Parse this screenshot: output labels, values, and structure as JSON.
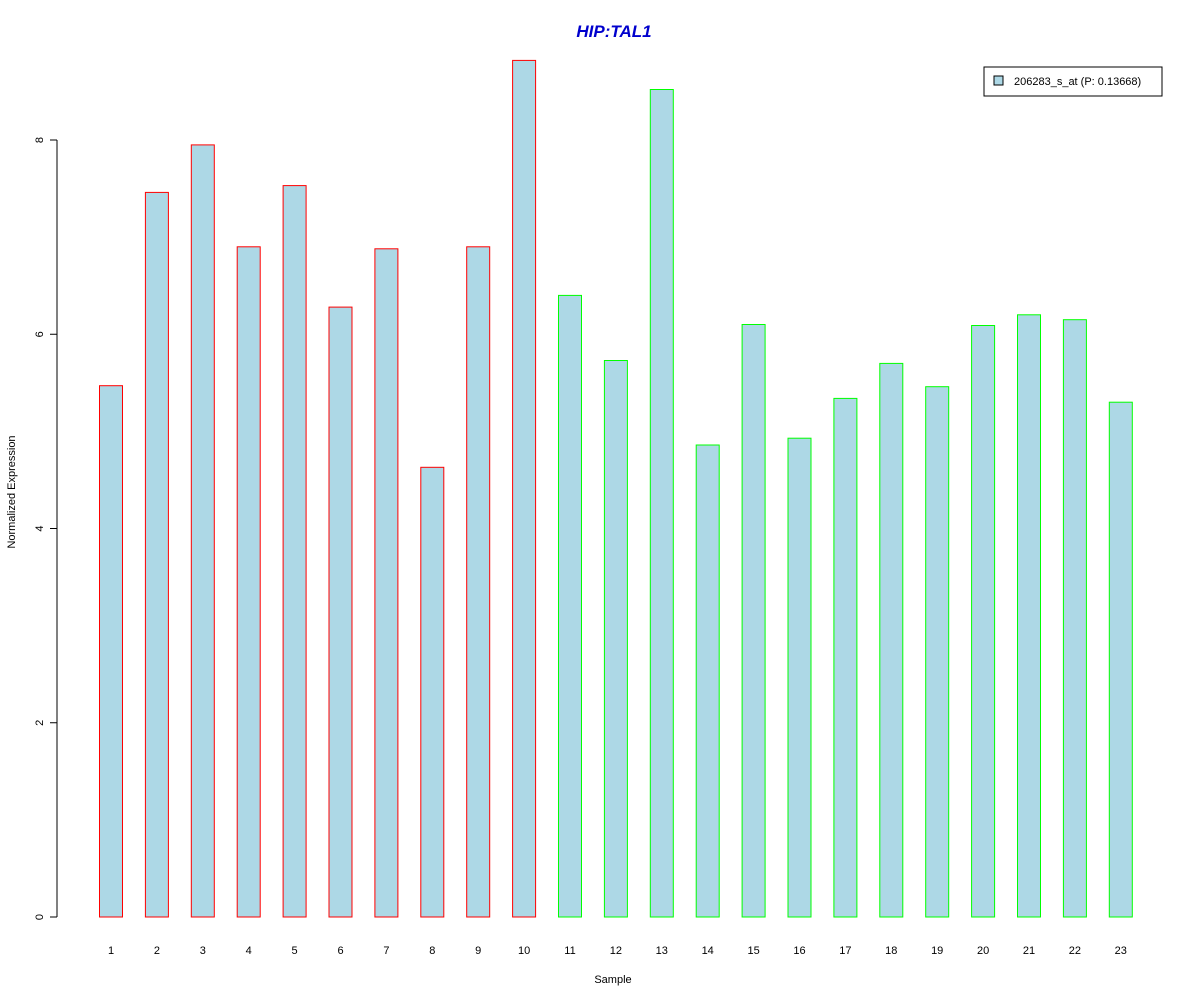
{
  "chart_data": {
    "type": "bar",
    "title": "HIP:TAL1",
    "xlabel": "Sample",
    "ylabel": "Normalized Expression",
    "categories": [
      "1",
      "2",
      "3",
      "4",
      "5",
      "6",
      "7",
      "8",
      "9",
      "10",
      "11",
      "12",
      "13",
      "14",
      "15",
      "16",
      "17",
      "18",
      "19",
      "20",
      "21",
      "22",
      "23"
    ],
    "series": [
      {
        "name": "206283_s_at (P: 0.13668)",
        "values": [
          5.47,
          7.46,
          7.95,
          6.9,
          7.53,
          6.28,
          6.88,
          4.63,
          6.9,
          8.82,
          6.4,
          5.73,
          8.52,
          4.86,
          6.1,
          4.93,
          5.34,
          5.7,
          5.46,
          6.09,
          6.2,
          6.15,
          5.3
        ]
      }
    ],
    "groups": [
      {
        "samples": [
          1,
          10
        ],
        "border_color": "#ff0000"
      },
      {
        "samples": [
          11,
          23
        ],
        "border_color": "#00ff00"
      }
    ],
    "yticks": [
      0,
      2,
      4,
      6,
      8
    ],
    "ylim": [
      0,
      9.0
    ],
    "grid": false,
    "legend_position": "top-right"
  },
  "colors": {
    "bar_fill": "#add8e6",
    "title": "#0000cd",
    "group1_border": "#ff0000",
    "group2_border": "#00ff00",
    "axis": "#000000"
  }
}
